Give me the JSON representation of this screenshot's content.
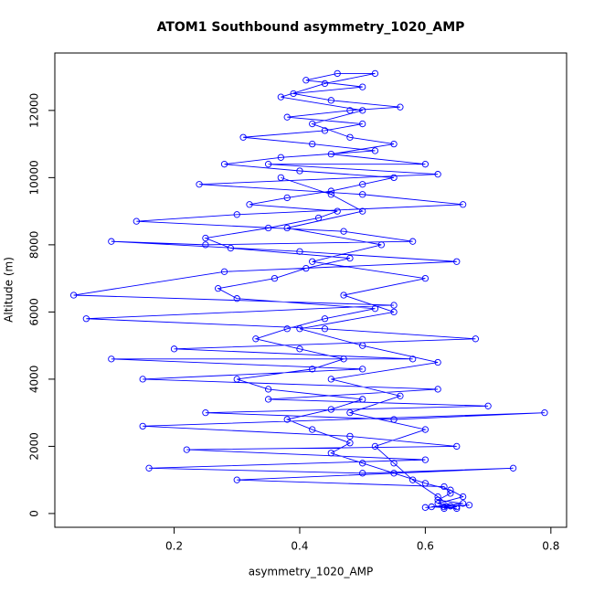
{
  "chart_data": {
    "type": "line",
    "title": "ATOM1 Southbound asymmetry_1020_AMP",
    "xlabel": "asymmetry_1020_AMP",
    "ylabel": "Altitude (m)",
    "color": "#0000ff",
    "markers": true,
    "grid": false,
    "x": [
      0.63,
      0.65,
      0.62,
      0.66,
      0.64,
      0.6,
      0.55,
      0.5,
      0.45,
      0.48,
      0.42,
      0.38,
      0.45,
      0.5,
      0.35,
      0.3,
      0.42,
      0.47,
      0.4,
      0.33,
      0.38,
      0.44,
      0.52,
      0.3,
      0.27,
      0.36,
      0.41,
      0.48,
      0.29,
      0.25,
      0.35,
      0.43,
      0.46,
      0.32,
      0.38,
      0.45,
      0.5,
      0.55,
      0.4,
      0.28,
      0.37,
      0.52,
      0.42,
      0.31,
      0.44,
      0.5,
      0.38,
      0.48,
      0.56,
      0.45,
      0.39,
      0.5,
      0.41,
      0.46,
      0.52,
      0.44,
      0.37,
      0.5,
      0.42,
      0.48,
      0.55,
      0.45,
      0.6,
      0.35,
      0.62,
      0.24,
      0.5,
      0.66,
      0.3,
      0.14,
      0.47,
      0.58,
      0.25,
      0.1,
      0.4,
      0.65,
      0.28,
      0.04,
      0.55,
      0.06,
      0.44,
      0.68,
      0.2,
      0.58,
      0.1,
      0.5,
      0.15,
      0.62,
      0.35,
      0.7,
      0.25,
      0.55,
      0.79,
      0.15,
      0.48,
      0.65,
      0.22,
      0.6,
      0.16,
      0.5,
      0.74,
      0.3,
      0.63,
      0.64,
      0.62,
      0.66,
      0.61,
      0.65,
      0.63,
      0.67,
      0.6,
      0.64,
      0.62,
      0.58,
      0.55,
      0.52,
      0.6,
      0.48,
      0.56,
      0.45,
      0.62,
      0.5,
      0.4,
      0.55,
      0.47,
      0.6,
      0.42,
      0.53,
      0.38,
      0.5,
      0.45,
      0.37
    ],
    "values": [
      150,
      200,
      300,
      500,
      700,
      900,
      1200,
      1500,
      1800,
      2100,
      2500,
      2800,
      3100,
      3400,
      3700,
      4000,
      4300,
      4600,
      4900,
      5200,
      5500,
      5800,
      6100,
      6400,
      6700,
      7000,
      7300,
      7600,
      7900,
      8200,
      8500,
      8800,
      9000,
      9200,
      9400,
      9600,
      9800,
      10000,
      10200,
      10400,
      10600,
      10800,
      11000,
      11200,
      11400,
      11600,
      11800,
      12000,
      12100,
      12300,
      12500,
      12700,
      12900,
      13100,
      13100,
      12800,
      12400,
      12000,
      11600,
      11200,
      11000,
      10700,
      10400,
      10400,
      10100,
      9800,
      9500,
      9200,
      8900,
      8700,
      8400,
      8100,
      8000,
      8100,
      7800,
      7500,
      7200,
      6500,
      6200,
      5800,
      5500,
      5200,
      4900,
      4600,
      4600,
      4300,
      4000,
      3700,
      3400,
      3200,
      3000,
      2800,
      3000,
      2600,
      2300,
      2000,
      1900,
      1600,
      1350,
      1200,
      1350,
      1000,
      800,
      600,
      400,
      300,
      200,
      150,
      200,
      250,
      180,
      220,
      500,
      1000,
      1500,
      2000,
      2500,
      3000,
      3500,
      4000,
      4500,
      5000,
      5500,
      6000,
      6500,
      7000,
      7500,
      8000,
      8500,
      9000,
      9500,
      10000
    ],
    "xlim": [
      0.01,
      0.825
    ],
    "ylim": [
      -410,
      13710
    ],
    "xticks": [
      0.2,
      0.4,
      0.6,
      0.8
    ],
    "yticks": [
      0,
      2000,
      4000,
      6000,
      8000,
      10000,
      12000
    ]
  }
}
